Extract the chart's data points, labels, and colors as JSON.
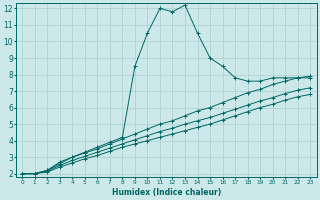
{
  "xlabel": "Humidex (Indice chaleur)",
  "ylabel": "",
  "xlim": [
    -0.5,
    23.5
  ],
  "ylim": [
    1.8,
    12.3
  ],
  "yticks": [
    2,
    3,
    4,
    5,
    6,
    7,
    8,
    9,
    10,
    11,
    12
  ],
  "xticks": [
    0,
    1,
    2,
    3,
    4,
    5,
    6,
    7,
    8,
    9,
    10,
    11,
    12,
    13,
    14,
    15,
    16,
    17,
    18,
    19,
    20,
    21,
    22,
    23
  ],
  "line_color": "#006666",
  "bg_color": "#cce8e8",
  "grid_color": "#aacfcf",
  "series": [
    {
      "x": [
        0,
        1,
        2,
        3,
        4,
        5,
        6,
        7,
        8,
        9,
        10,
        11,
        12,
        13,
        14,
        15,
        16,
        17,
        18,
        19,
        20,
        21,
        22,
        23
      ],
      "y": [
        2.0,
        2.0,
        2.2,
        2.7,
        3.0,
        3.3,
        3.6,
        3.9,
        4.2,
        8.5,
        10.5,
        12.0,
        11.8,
        12.2,
        10.5,
        9.0,
        8.5,
        7.8,
        7.6,
        7.6,
        7.8,
        7.8,
        7.8,
        7.8
      ],
      "marker": "+"
    },
    {
      "x": [
        0,
        1,
        2,
        3,
        4,
        5,
        6,
        7,
        8,
        9,
        10,
        11,
        12,
        13,
        14,
        15,
        16,
        17,
        18,
        19,
        20,
        21,
        22,
        23
      ],
      "y": [
        2.0,
        2.0,
        2.2,
        2.6,
        3.0,
        3.25,
        3.5,
        3.8,
        4.1,
        4.4,
        4.7,
        5.0,
        5.2,
        5.5,
        5.8,
        6.0,
        6.3,
        6.6,
        6.9,
        7.1,
        7.4,
        7.6,
        7.8,
        7.9
      ],
      "marker": "+"
    },
    {
      "x": [
        0,
        1,
        2,
        3,
        4,
        5,
        6,
        7,
        8,
        9,
        10,
        11,
        12,
        13,
        14,
        15,
        16,
        17,
        18,
        19,
        20,
        21,
        22,
        23
      ],
      "y": [
        2.0,
        2.0,
        2.15,
        2.5,
        2.8,
        3.05,
        3.3,
        3.55,
        3.8,
        4.05,
        4.3,
        4.55,
        4.75,
        5.0,
        5.2,
        5.4,
        5.65,
        5.9,
        6.15,
        6.4,
        6.6,
        6.85,
        7.05,
        7.2
      ],
      "marker": "+"
    },
    {
      "x": [
        0,
        1,
        2,
        3,
        4,
        5,
        6,
        7,
        8,
        9,
        10,
        11,
        12,
        13,
        14,
        15,
        16,
        17,
        18,
        19,
        20,
        21,
        22,
        23
      ],
      "y": [
        2.0,
        2.0,
        2.1,
        2.4,
        2.65,
        2.9,
        3.1,
        3.35,
        3.6,
        3.8,
        4.0,
        4.2,
        4.4,
        4.6,
        4.8,
        5.0,
        5.25,
        5.5,
        5.75,
        6.0,
        6.2,
        6.45,
        6.65,
        6.8
      ],
      "marker": "+"
    }
  ]
}
